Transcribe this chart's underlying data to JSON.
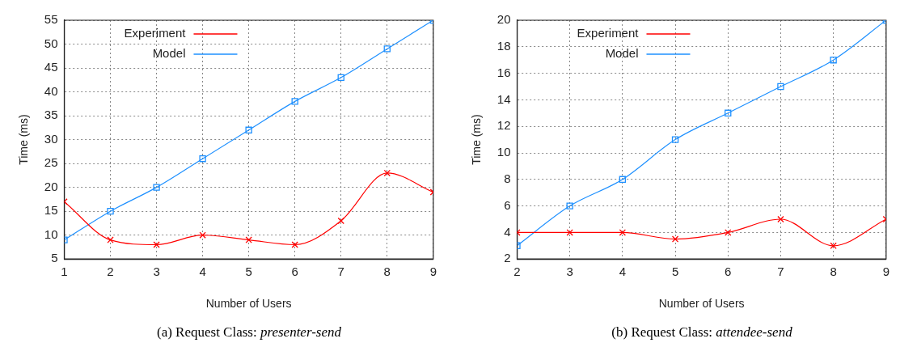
{
  "chart_data": [
    {
      "type": "line",
      "xlabel": "Number of Users",
      "ylabel": "Time (ms)",
      "x": [
        1,
        2,
        3,
        4,
        5,
        6,
        7,
        8,
        9
      ],
      "xlim": [
        1,
        9
      ],
      "xticks": [
        1,
        2,
        3,
        4,
        5,
        6,
        7,
        8,
        9
      ],
      "ylim": [
        5,
        55
      ],
      "yticks": [
        5,
        10,
        15,
        20,
        25,
        30,
        35,
        40,
        45,
        50,
        55
      ],
      "grid": true,
      "legend": "top left",
      "line_style": "solid",
      "series": [
        {
          "name": "Experiment",
          "color": "#ff0000",
          "marker": "cross",
          "values": [
            17,
            9,
            8,
            10,
            9,
            8,
            13,
            23,
            19
          ]
        },
        {
          "name": "Model",
          "color": "#1e90ff",
          "marker": "square",
          "values": [
            9,
            15,
            20,
            26,
            32,
            38,
            43,
            49,
            55
          ]
        }
      ],
      "annotations": [
        "(a)  Request Class: presenter-send"
      ]
    },
    {
      "type": "line",
      "xlabel": "Number of Users",
      "ylabel": "Time (ms)",
      "x": [
        2,
        3,
        4,
        5,
        6,
        7,
        8,
        9
      ],
      "xlim": [
        2,
        9
      ],
      "xticks": [
        2,
        3,
        4,
        5,
        6,
        7,
        8,
        9
      ],
      "ylim": [
        2,
        20
      ],
      "yticks": [
        2,
        4,
        6,
        8,
        10,
        12,
        14,
        16,
        18,
        20
      ],
      "grid": true,
      "legend": "top left",
      "line_style": "solid",
      "series": [
        {
          "name": "Experiment",
          "color": "#ff0000",
          "marker": "cross",
          "values": [
            4,
            4,
            4,
            3.5,
            4,
            5,
            3,
            5
          ]
        },
        {
          "name": "Model",
          "color": "#1e90ff",
          "marker": "square",
          "values": [
            3,
            6,
            8,
            11,
            13,
            15,
            17,
            20
          ]
        }
      ],
      "annotations": [
        "(b)  Request Class: attendee-send"
      ]
    }
  ]
}
